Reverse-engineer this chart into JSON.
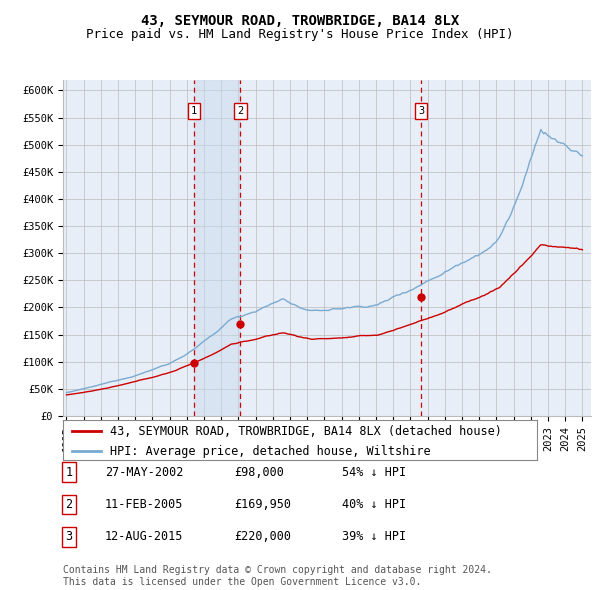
{
  "title": "43, SEYMOUR ROAD, TROWBRIDGE, BA14 8LX",
  "subtitle": "Price paid vs. HM Land Registry's House Price Index (HPI)",
  "ylim": [
    0,
    620000
  ],
  "yticks": [
    0,
    50000,
    100000,
    150000,
    200000,
    250000,
    300000,
    350000,
    400000,
    450000,
    500000,
    550000,
    600000
  ],
  "ytick_labels": [
    "£0",
    "£50K",
    "£100K",
    "£150K",
    "£200K",
    "£250K",
    "£300K",
    "£350K",
    "£400K",
    "£450K",
    "£500K",
    "£550K",
    "£600K"
  ],
  "background_color": "#ffffff",
  "plot_background": "#e8eef8",
  "grid_color": "#bbbbbb",
  "hpi_line_color": "#7aaad0",
  "price_line_color": "#cc0000",
  "sale_marker_color": "#cc0000",
  "transactions": [
    {
      "date": 2002.41,
      "price": 98000,
      "label": "1"
    },
    {
      "date": 2005.12,
      "price": 169950,
      "label": "2"
    },
    {
      "date": 2015.62,
      "price": 220000,
      "label": "3"
    }
  ],
  "vline_color": "#cc0000",
  "shade_color": "#c8d8ee",
  "legend_entries": [
    "43, SEYMOUR ROAD, TROWBRIDGE, BA14 8LX (detached house)",
    "HPI: Average price, detached house, Wiltshire"
  ],
  "table_rows": [
    [
      "1",
      "27-MAY-2002",
      "£98,000",
      "54% ↓ HPI"
    ],
    [
      "2",
      "11-FEB-2005",
      "£169,950",
      "40% ↓ HPI"
    ],
    [
      "3",
      "12-AUG-2015",
      "£220,000",
      "39% ↓ HPI"
    ]
  ],
  "footnote": "Contains HM Land Registry data © Crown copyright and database right 2024.\nThis data is licensed under the Open Government Licence v3.0.",
  "title_fontsize": 10,
  "subtitle_fontsize": 9,
  "tick_fontsize": 7.5,
  "legend_fontsize": 8.5,
  "table_fontsize": 8.5,
  "footnote_fontsize": 7
}
